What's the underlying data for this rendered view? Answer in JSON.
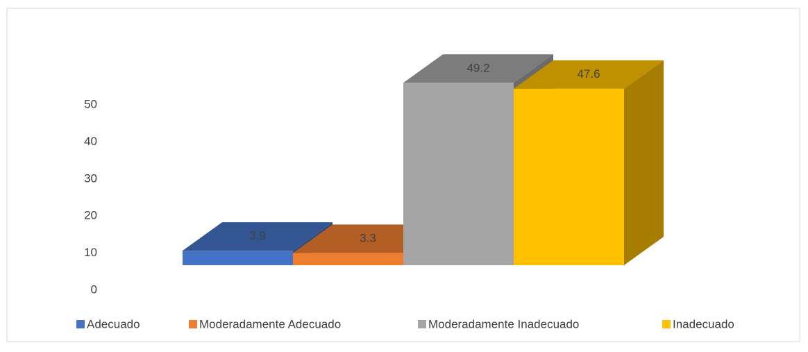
{
  "chart_data": {
    "type": "bar3d",
    "categories": [
      "Adecuado",
      "Moderadamente Adecuado",
      "Moderadamente Inadecuado",
      "Inadecuado"
    ],
    "values": [
      3.9,
      3.3,
      49.2,
      47.6
    ],
    "colors": [
      "#4472c4",
      "#ed7d31",
      "#a5a5a5",
      "#ffc000"
    ],
    "ylim": [
      0,
      50
    ],
    "yticks": [
      0,
      10,
      20,
      30,
      40,
      50
    ],
    "legend": "bottom"
  }
}
